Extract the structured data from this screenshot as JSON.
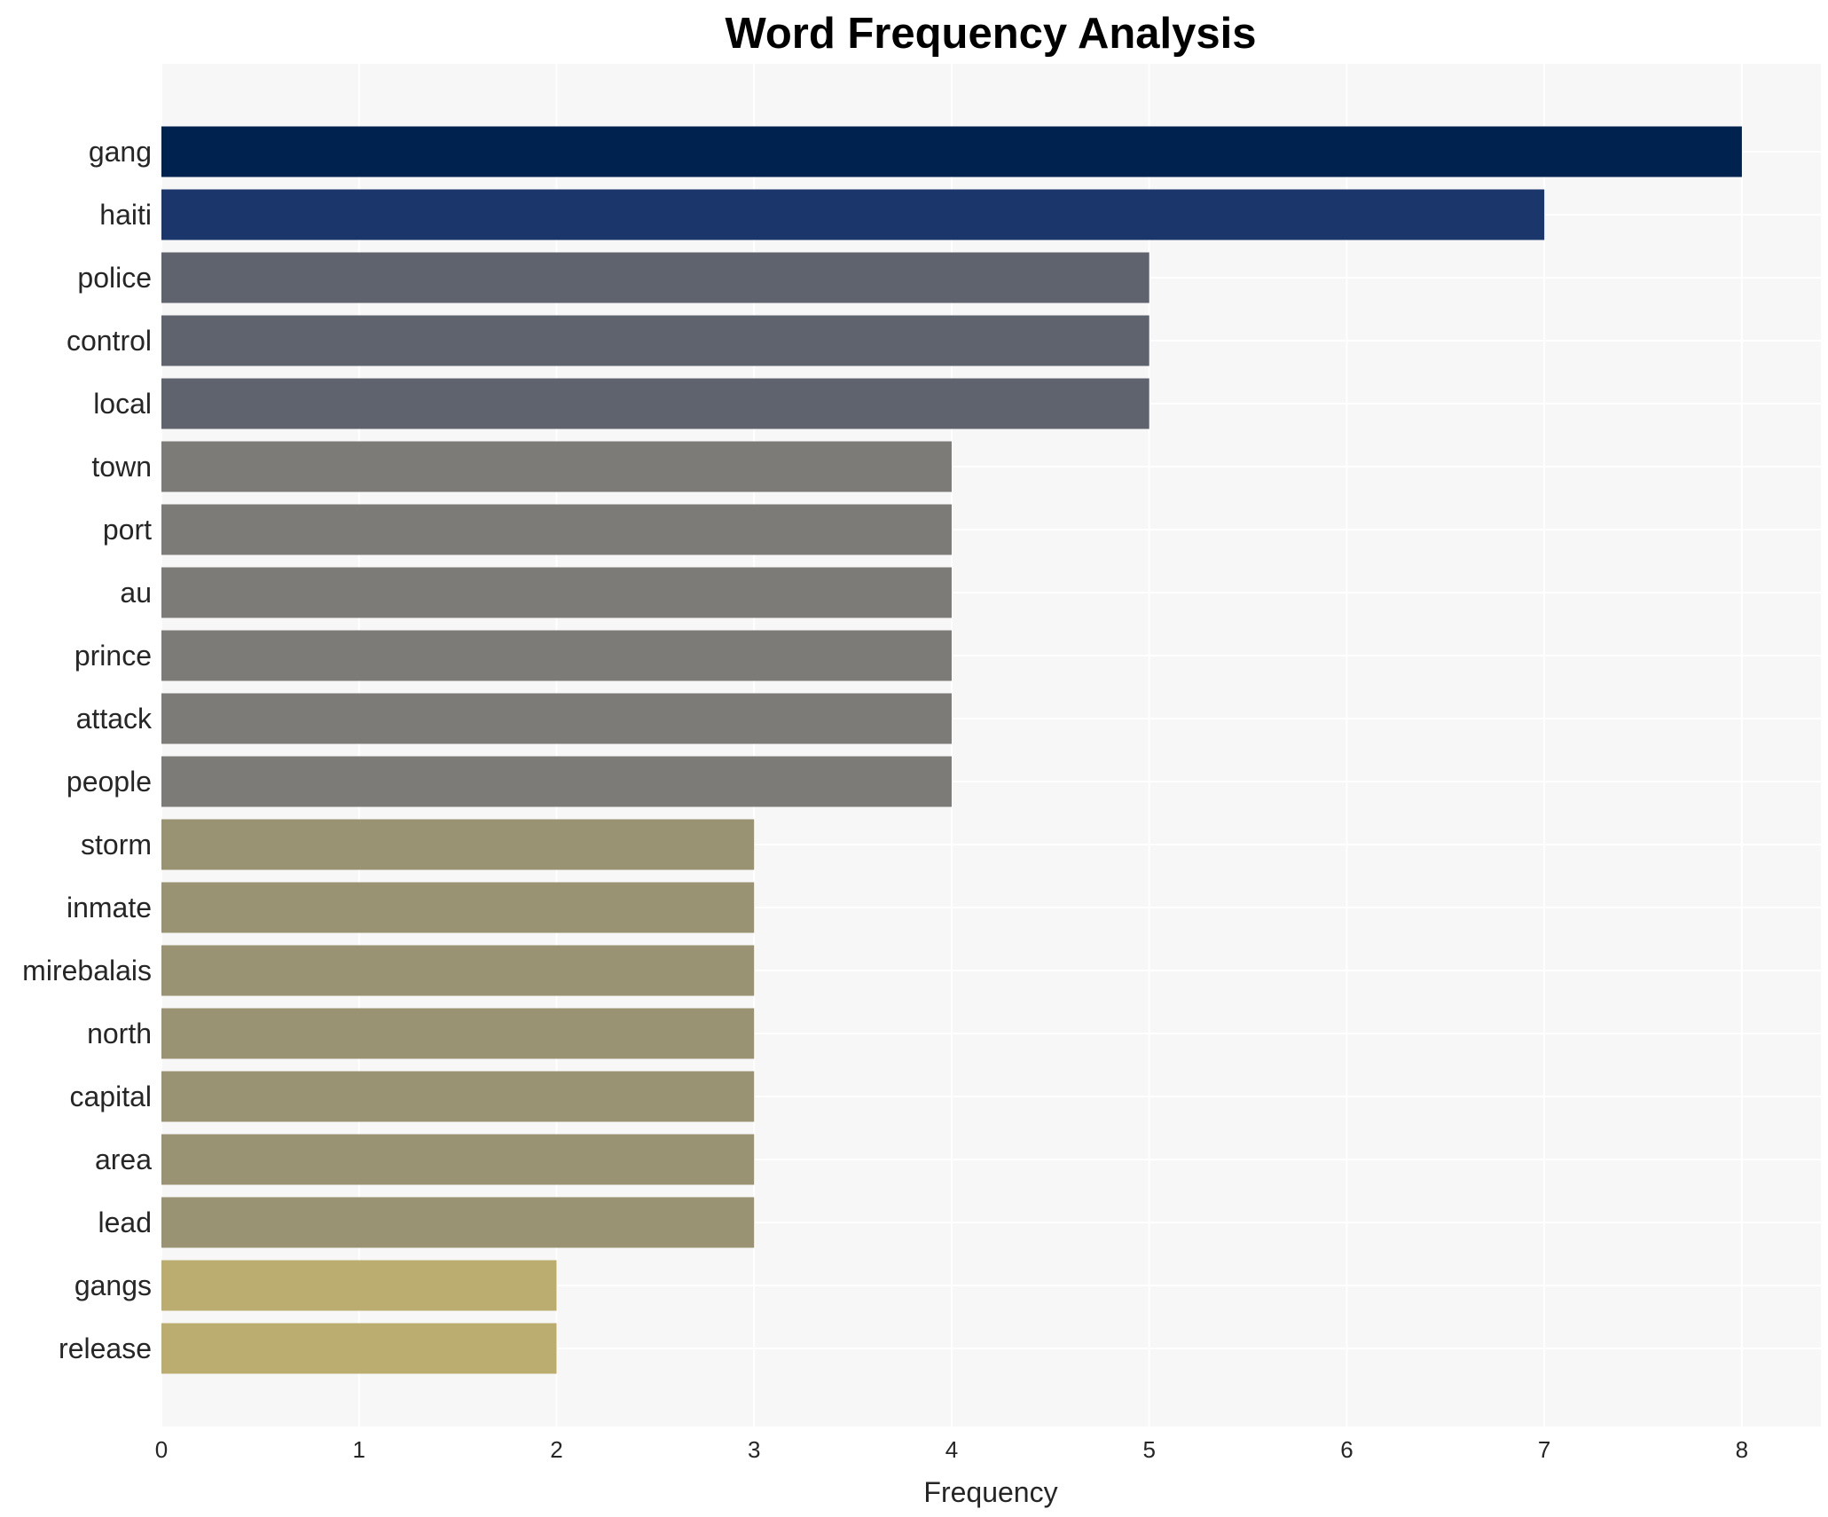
{
  "chart_data": {
    "type": "bar",
    "orientation": "horizontal",
    "title": "Word Frequency Analysis",
    "xlabel": "Frequency",
    "ylabel": "",
    "xlim": [
      0,
      8.4
    ],
    "x_ticks": [
      "0",
      "1",
      "2",
      "3",
      "4",
      "5",
      "6",
      "7",
      "8"
    ],
    "grid": true,
    "background_color": "#f7f7f7",
    "grid_color": "#ffffff",
    "categories": [
      "gang",
      "haiti",
      "police",
      "control",
      "local",
      "town",
      "port",
      "au",
      "prince",
      "attack",
      "people",
      "storm",
      "inmate",
      "mirebalais",
      "north",
      "capital",
      "area",
      "lead",
      "gangs",
      "release"
    ],
    "values": [
      8,
      7,
      5,
      5,
      5,
      4,
      4,
      4,
      4,
      4,
      4,
      3,
      3,
      3,
      3,
      3,
      3,
      3,
      2,
      2
    ],
    "bar_colors": [
      "#00224e",
      "#1a366b",
      "#5f636e",
      "#5f636e",
      "#5f636e",
      "#7c7b78",
      "#7c7b78",
      "#7c7b78",
      "#7c7b78",
      "#7c7b78",
      "#7c7b78",
      "#9a9373",
      "#9a9373",
      "#9a9373",
      "#9a9373",
      "#9a9373",
      "#9a9373",
      "#9a9373",
      "#bbad6f",
      "#bbad6f"
    ]
  }
}
